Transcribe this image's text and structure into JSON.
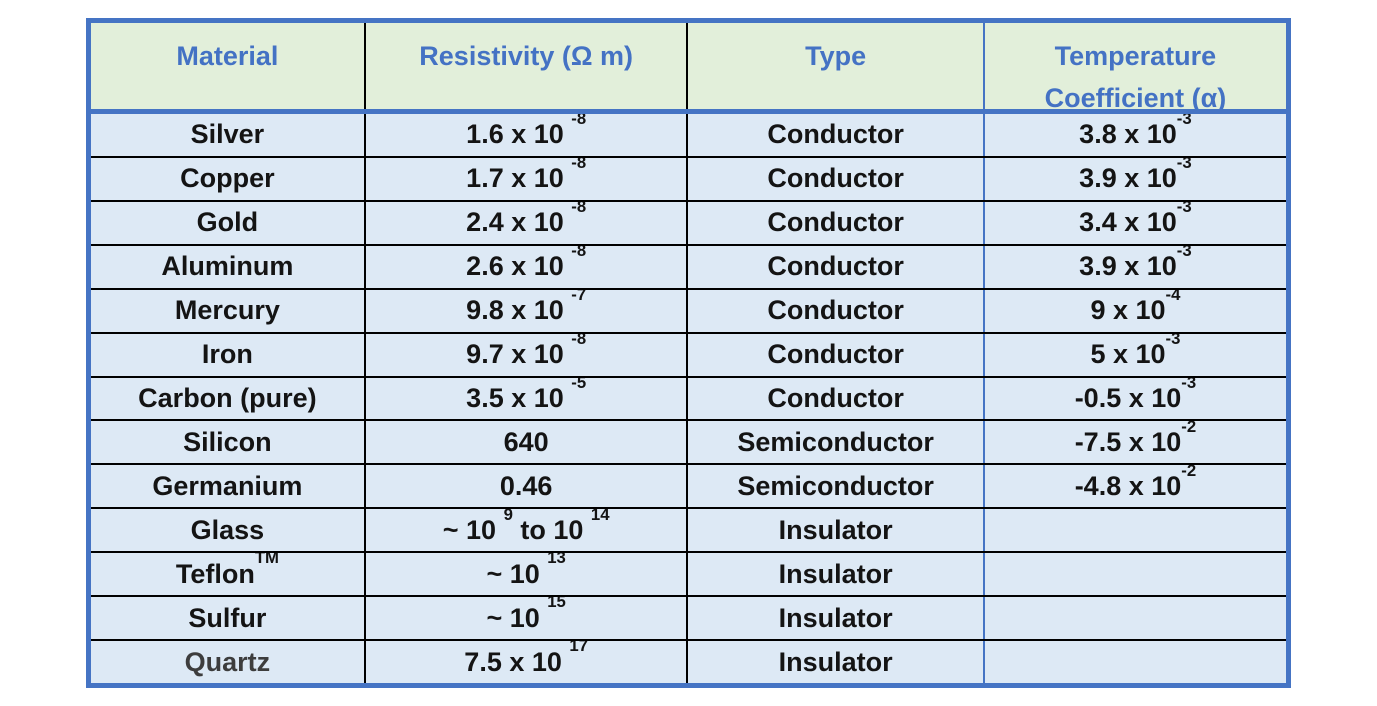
{
  "colors": {
    "border_blue": "#4574c4",
    "header_bg": "#e2efda",
    "header_text": "#4472c4",
    "body_bg": "#dde9f5",
    "grid_line": "#000000",
    "body_text": "#141414",
    "muted_text": "#3d3d3d"
  },
  "chart_data": {
    "type": "table",
    "title": "",
    "columns": [
      "Material",
      "Resistivity (Ω m)",
      "Type",
      "Temperature Coefficient (α)"
    ],
    "rows": [
      [
        "Silver",
        "1.6 x 10^-8",
        "Conductor",
        "3.8 x 10^-3"
      ],
      [
        "Copper",
        "1.7 x 10^-8",
        "Conductor",
        "3.9 x 10^-3"
      ],
      [
        "Gold",
        "2.4 x 10^-8",
        "Conductor",
        "3.4 x 10^-3"
      ],
      [
        "Aluminum",
        "2.6 x 10^-8",
        "Conductor",
        "3.9 x 10^-3"
      ],
      [
        "Mercury",
        "9.8 x 10^-7",
        "Conductor",
        "9 x 10^-4"
      ],
      [
        "Iron",
        "9.7 x 10^-8",
        "Conductor",
        "5 x 10^-3"
      ],
      [
        "Carbon (pure)",
        "3.5 x 10^-5",
        "Conductor",
        "-0.5 x 10^-3"
      ],
      [
        "Silicon",
        "640",
        "Semiconductor",
        "-7.5 x 10^-2"
      ],
      [
        "Germanium",
        "0.46",
        "Semiconductor",
        "-4.8 x 10^-2"
      ],
      [
        "Glass",
        "~ 10^9 to 10^14",
        "Insulator",
        ""
      ],
      [
        "Teflon^TM",
        "~ 10^13",
        "Insulator",
        ""
      ],
      [
        "Sulfur",
        "~ 10^15",
        "Insulator",
        ""
      ],
      [
        "Quartz",
        "7.5 x 10^17",
        "Insulator",
        ""
      ]
    ]
  },
  "table": {
    "headers": [
      {
        "id": "material",
        "segments": [
          [
            "Material",
            false
          ]
        ]
      },
      {
        "id": "resistivity",
        "segments": [
          [
            "Resistivity (Ω m)",
            false
          ]
        ]
      },
      {
        "id": "type",
        "segments": [
          [
            "Type",
            false
          ]
        ]
      },
      {
        "id": "temperature-coefficient",
        "segments": [
          [
            "Temperature Coefficient (α)",
            false
          ]
        ]
      }
    ],
    "rows": [
      {
        "id": "silver",
        "muted": false,
        "cells": [
          [
            [
              "Silver",
              false
            ]
          ],
          [
            [
              "1.6 x 10 ",
              false
            ],
            [
              "-8",
              true
            ]
          ],
          [
            [
              "Conductor",
              false
            ]
          ],
          [
            [
              "3.8 x 10",
              false
            ],
            [
              "-3",
              true
            ]
          ]
        ]
      },
      {
        "id": "copper",
        "muted": false,
        "cells": [
          [
            [
              "Copper",
              false
            ]
          ],
          [
            [
              "1.7 x 10 ",
              false
            ],
            [
              "-8",
              true
            ]
          ],
          [
            [
              "Conductor",
              false
            ]
          ],
          [
            [
              "3.9 x 10",
              false
            ],
            [
              "-3",
              true
            ]
          ]
        ]
      },
      {
        "id": "gold",
        "muted": false,
        "cells": [
          [
            [
              "Gold",
              false
            ]
          ],
          [
            [
              "2.4 x 10 ",
              false
            ],
            [
              "-8",
              true
            ]
          ],
          [
            [
              "Conductor",
              false
            ]
          ],
          [
            [
              "3.4 x 10",
              false
            ],
            [
              "-3",
              true
            ]
          ]
        ]
      },
      {
        "id": "aluminum",
        "muted": false,
        "cells": [
          [
            [
              "Aluminum",
              false
            ]
          ],
          [
            [
              "2.6 x 10 ",
              false
            ],
            [
              "-8",
              true
            ]
          ],
          [
            [
              "Conductor",
              false
            ]
          ],
          [
            [
              "3.9 x 10",
              false
            ],
            [
              "-3",
              true
            ]
          ]
        ]
      },
      {
        "id": "mercury",
        "muted": false,
        "cells": [
          [
            [
              "Mercury",
              false
            ]
          ],
          [
            [
              "9.8 x 10 ",
              false
            ],
            [
              "-7",
              true
            ]
          ],
          [
            [
              "Conductor",
              false
            ]
          ],
          [
            [
              "9 x 10",
              false
            ],
            [
              "-4",
              true
            ]
          ]
        ]
      },
      {
        "id": "iron",
        "muted": false,
        "cells": [
          [
            [
              "Iron",
              false
            ]
          ],
          [
            [
              "9.7 x 10 ",
              false
            ],
            [
              "-8",
              true
            ]
          ],
          [
            [
              "Conductor",
              false
            ]
          ],
          [
            [
              "5 x 10",
              false
            ],
            [
              "-3",
              true
            ]
          ]
        ]
      },
      {
        "id": "carbon-pure",
        "muted": false,
        "cells": [
          [
            [
              "Carbon (pure)",
              false
            ]
          ],
          [
            [
              "3.5 x 10 ",
              false
            ],
            [
              "-5",
              true
            ]
          ],
          [
            [
              "Conductor",
              false
            ]
          ],
          [
            [
              "-0.5 x 10",
              false
            ],
            [
              "-3",
              true
            ]
          ]
        ]
      },
      {
        "id": "silicon",
        "muted": false,
        "cells": [
          [
            [
              "Silicon",
              false
            ]
          ],
          [
            [
              "640",
              false
            ]
          ],
          [
            [
              "Semiconductor",
              false
            ]
          ],
          [
            [
              "-7.5 x 10",
              false
            ],
            [
              "-2",
              true
            ]
          ]
        ]
      },
      {
        "id": "germanium",
        "muted": false,
        "cells": [
          [
            [
              "Germanium",
              false
            ]
          ],
          [
            [
              "0.46",
              false
            ]
          ],
          [
            [
              "Semiconductor",
              false
            ]
          ],
          [
            [
              "-4.8 x 10",
              false
            ],
            [
              "-2",
              true
            ]
          ]
        ]
      },
      {
        "id": "glass",
        "muted": false,
        "cells": [
          [
            [
              "Glass",
              false
            ]
          ],
          [
            [
              "~ 10 ",
              false
            ],
            [
              "9",
              true
            ],
            [
              " to 10 ",
              false
            ],
            [
              "14",
              true
            ]
          ],
          [
            [
              "Insulator",
              false
            ]
          ],
          []
        ]
      },
      {
        "id": "teflon",
        "muted": false,
        "cells": [
          [
            [
              "Teflon",
              false
            ],
            [
              "TM",
              true
            ]
          ],
          [
            [
              "~ 10 ",
              false
            ],
            [
              "13",
              true
            ]
          ],
          [
            [
              "Insulator",
              false
            ]
          ],
          []
        ]
      },
      {
        "id": "sulfur",
        "muted": false,
        "cells": [
          [
            [
              "Sulfur",
              false
            ]
          ],
          [
            [
              "~ 10 ",
              false
            ],
            [
              "15",
              true
            ]
          ],
          [
            [
              "Insulator",
              false
            ]
          ],
          []
        ]
      },
      {
        "id": "quartz",
        "muted": true,
        "cells": [
          [
            [
              "Quartz",
              false
            ]
          ],
          [
            [
              "7.5 x 10 ",
              false
            ],
            [
              "17",
              true
            ]
          ],
          [
            [
              "Insulator",
              false
            ]
          ],
          []
        ]
      }
    ]
  }
}
